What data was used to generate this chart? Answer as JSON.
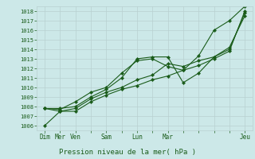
{
  "title": "Pression niveau de la mer( hPa )",
  "ylabel_values": [
    1006,
    1007,
    1008,
    1009,
    1010,
    1011,
    1012,
    1013,
    1014,
    1015,
    1016,
    1017,
    1018
  ],
  "ylim": [
    1005.5,
    1018.5
  ],
  "background_color": "#cce8e8",
  "grid_color": "#b8d0d0",
  "line_color": "#1a5c1a",
  "marker_color": "#1a5c1a",
  "x_tick_positions": [
    0,
    1,
    2,
    3,
    4,
    5,
    6,
    7,
    8,
    9,
    10,
    11,
    12,
    13
  ],
  "x_tick_labels": [
    "Dim",
    "Mer",
    "Ven",
    "",
    "Sam",
    "",
    "Lun",
    "",
    "Mar",
    "",
    "",
    "",
    "",
    "Jeu"
  ],
  "series": [
    [
      1007.8,
      1007.5,
      1007.5,
      1008.5,
      1009.2,
      1009.8,
      1010.2,
      1010.8,
      1011.2,
      1011.8,
      1012.3,
      1013.0,
      1013.8,
      1018.0
    ],
    [
      1006.0,
      1007.5,
      1007.8,
      1008.8,
      1009.5,
      1010.0,
      1010.8,
      1011.3,
      1012.5,
      1012.2,
      1012.8,
      1013.2,
      1014.2,
      1017.5
    ],
    [
      1007.8,
      1007.8,
      1008.0,
      1009.0,
      1009.8,
      1011.0,
      1013.0,
      1013.2,
      1013.2,
      1010.5,
      1011.5,
      1013.2,
      1014.0,
      1017.8
    ],
    [
      1007.8,
      1007.7,
      1008.5,
      1009.5,
      1010.0,
      1011.5,
      1012.8,
      1013.0,
      1012.2,
      1011.8,
      1013.3,
      1016.0,
      1017.0,
      1018.5
    ]
  ],
  "figsize": [
    3.2,
    2.0
  ],
  "dpi": 100
}
